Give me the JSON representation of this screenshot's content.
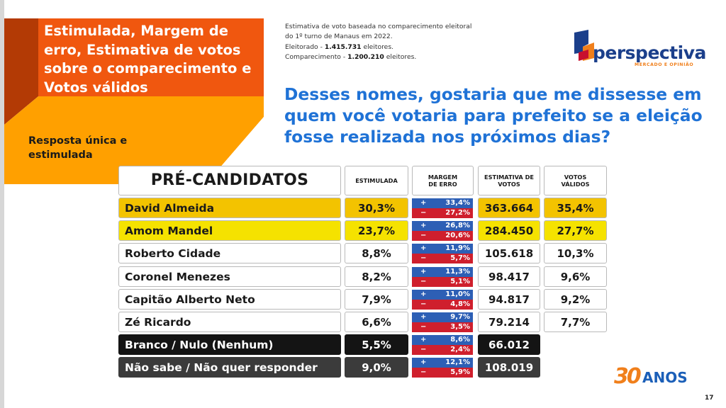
{
  "header": {
    "title": "Estimulada, Margem de erro, Estimativa de votos sobre o comparecimento e Votos válidos",
    "subtitle": "Resposta única e estimulada"
  },
  "info": {
    "line1": "Estimativa de voto baseada no comparecimento eleitoral",
    "line2": "do 1º turno de Manaus em 2022.",
    "electorate_label": "Eleitorado - ",
    "electorate_value": "1.415.731",
    "electorate_suffix": " eleitores.",
    "turnout_label": "Comparecimento - ",
    "turnout_value": "1.200.210",
    "turnout_suffix": " eleitores."
  },
  "logo": {
    "word": "perspectiva",
    "tagline": "MERCADO E OPINIÃO"
  },
  "question": "Desses nomes, gostaria que me dissesse em quem você votaria para prefeito se a eleição fosse realizada nos próximos dias?",
  "table": {
    "headers": {
      "candidates": "PRÉ-CANDIDATOS",
      "stimulated": "ESTIMULADA",
      "margin": "MARGEM DE ERRO",
      "estimate": "ESTIMATIVA DE VOTOS",
      "valid": "VOTOS VÁLIDOS"
    },
    "rows": [
      {
        "name": "David Almeida",
        "stimulated": "30,3%",
        "plus": "33,4%",
        "minus": "27,2%",
        "estimate": "363.664",
        "valid": "35,4%",
        "style": "y1"
      },
      {
        "name": "Amom Mandel",
        "stimulated": "23,7%",
        "plus": "26,8%",
        "minus": "20,6%",
        "estimate": "284.450",
        "valid": "27,7%",
        "style": "y2"
      },
      {
        "name": "Roberto Cidade",
        "stimulated": "8,8%",
        "plus": "11,9%",
        "minus": "5,7%",
        "estimate": "105.618",
        "valid": "10,3%",
        "style": "w"
      },
      {
        "name": "Coronel Menezes",
        "stimulated": "8,2%",
        "plus": "11,3%",
        "minus": "5,1%",
        "estimate": "98.417",
        "valid": "9,6%",
        "style": "w"
      },
      {
        "name": "Capitão Alberto Neto",
        "stimulated": "7,9%",
        "plus": "11,0%",
        "minus": "4,8%",
        "estimate": "94.817",
        "valid": "9,2%",
        "style": "w"
      },
      {
        "name": "Zé Ricardo",
        "stimulated": "6,6%",
        "plus": "9,7%",
        "minus": "3,5%",
        "estimate": "79.214",
        "valid": "7,7%",
        "style": "w"
      },
      {
        "name": "Branco / Nulo (Nenhum)",
        "stimulated": "5,5%",
        "plus": "8,6%",
        "minus": "2,4%",
        "estimate": "66.012",
        "valid": "",
        "style": "k"
      },
      {
        "name": "Não sabe / Não quer responder",
        "stimulated": "9,0%",
        "plus": "12,1%",
        "minus": "5,9%",
        "estimate": "108.019",
        "valid": "",
        "style": "g"
      }
    ],
    "plus_sign": "+",
    "minus_sign": "−"
  },
  "badge": {
    "number": "30",
    "word": "ANOS"
  },
  "page_number": "17",
  "colors": {
    "title_orange": "#f0570f",
    "band_orange": "#ffa000",
    "question_blue": "#1f72d6",
    "leader_yellow": "#f3c300",
    "second_yellow": "#f5e200",
    "plus_blue": "#2d5fb5",
    "minus_red": "#cf1f2d"
  }
}
